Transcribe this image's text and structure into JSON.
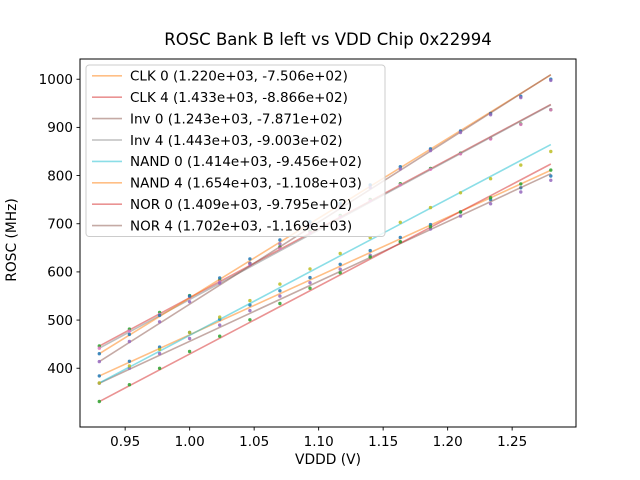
{
  "figure": {
    "title": "ROSC Bank B left vs VDD Chip 0x22994",
    "xlabel": "VDDD (V)",
    "ylabel": "ROSC (MHz)"
  },
  "chart_data": {
    "type": "scatter",
    "subtype": "measured points with linear fit lines",
    "title": "ROSC Bank B left vs VDD Chip 0x22994",
    "xlabel": "VDDD (V)",
    "ylabel": "ROSC (MHz)",
    "xlim": [
      0.915,
      1.2995
    ],
    "ylim": [
      278,
      1042
    ],
    "grid": false,
    "legend_position": "upper left",
    "xticks": [
      {
        "value": 0.95,
        "label": "0.95"
      },
      {
        "value": 1.0,
        "label": "1.00"
      },
      {
        "value": 1.05,
        "label": "1.05"
      },
      {
        "value": 1.1,
        "label": "1.10"
      },
      {
        "value": 1.15,
        "label": "1.15"
      },
      {
        "value": 1.2,
        "label": "1.20"
      },
      {
        "value": 1.25,
        "label": "1.25"
      }
    ],
    "yticks": [
      {
        "value": 400,
        "label": "400"
      },
      {
        "value": 500,
        "label": "500"
      },
      {
        "value": 600,
        "label": "600"
      },
      {
        "value": 700,
        "label": "700"
      },
      {
        "value": 800,
        "label": "800"
      },
      {
        "value": 900,
        "label": "900"
      },
      {
        "value": 1000,
        "label": "1000"
      }
    ],
    "x": [
      0.93,
      0.9533,
      0.9767,
      1.0,
      1.0233,
      1.0467,
      1.07,
      1.0933,
      1.1167,
      1.14,
      1.1633,
      1.1867,
      1.21,
      1.2333,
      1.2567,
      1.28
    ],
    "residual_pattern": [
      0,
      2,
      3,
      5,
      4,
      5,
      6,
      5,
      4,
      4,
      3,
      1,
      -1,
      -4,
      -8,
      -12
    ],
    "series": [
      {
        "name": "CLK 0",
        "legend_label": "CLK 0 (1.220e+03, -7.506e+02)",
        "fit_slope": 1220.0,
        "fit_intercept": -750.6,
        "line_color": "#ff7f0e",
        "marker_color": "#1f77b4",
        "residual_scale": 1.0
      },
      {
        "name": "CLK 4",
        "legend_label": "CLK 4 (1.433e+03, -8.866e+02)",
        "fit_slope": 1433.0,
        "fit_intercept": -886.6,
        "line_color": "#d62728",
        "marker_color": "#2ca02c",
        "residual_scale": 0.9
      },
      {
        "name": "Inv 0",
        "legend_label": "Inv 0 (1.243e+03, -7.871e+02)",
        "fit_slope": 1243.0,
        "fit_intercept": -787.1,
        "line_color": "#8c564b",
        "marker_color": "#9467bd",
        "residual_scale": 1.15
      },
      {
        "name": "Inv 4",
        "legend_label": "Inv 4 (1.443e+03, -9.003e+02)",
        "fit_slope": 1443.0,
        "fit_intercept": -900.3,
        "line_color": "#7f7f7f",
        "marker_color": "#e377c2",
        "residual_scale": 0.85
      },
      {
        "name": "NAND 0",
        "legend_label": "NAND 0 (1.414e+03, -9.456e+02)",
        "fit_slope": 1414.0,
        "fit_intercept": -945.6,
        "line_color": "#17becf",
        "marker_color": "#bcbd22",
        "residual_scale": 1.2
      },
      {
        "name": "NAND 4",
        "legend_label": "NAND 4 (1.654e+03, -1.108e+03)",
        "fit_slope": 1654.0,
        "fit_intercept": -1108.0,
        "line_color": "#ff7f0e",
        "marker_color": "#1f77b4",
        "residual_scale": 0.75
      },
      {
        "name": "NOR 0",
        "legend_label": "NOR 0 (1.409e+03, -9.795e+02)",
        "fit_slope": 1409.0,
        "fit_intercept": -979.5,
        "line_color": "#d62728",
        "marker_color": "#2ca02c",
        "residual_scale": 1.05
      },
      {
        "name": "NOR 4",
        "legend_label": "NOR 4 (1.702e+03, -1.169e+03)",
        "fit_slope": 1702.0,
        "fit_intercept": -1169.0,
        "line_color": "#8c564b",
        "marker_color": "#9467bd",
        "residual_scale": 1.0
      }
    ],
    "style": {
      "line_opacity": 0.5,
      "line_width": 1.6,
      "marker_radius": 1.7,
      "marker_opacity": 0.85,
      "axes_color": "#000000",
      "legend_border_color": "#cccccc",
      "background": "#ffffff"
    }
  }
}
